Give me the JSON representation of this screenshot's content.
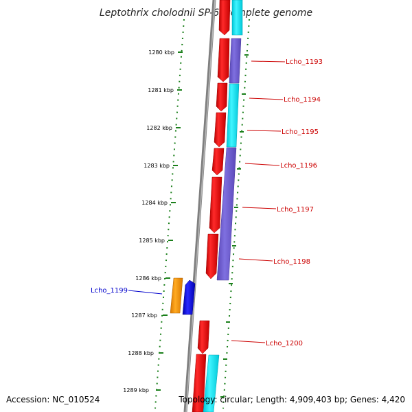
{
  "title": "Leptothrix cholodnii SP-6, complete genome",
  "footer": {
    "accession": "Accession: NC_010524",
    "topology": "Topology: circular; Length: 4,909,403 bp; Genes: 4,420"
  },
  "ticks": [
    {
      "label": "1280 kbp"
    },
    {
      "label": "1281 kbp"
    },
    {
      "label": "1282 kbp"
    },
    {
      "label": "1283 kbp"
    },
    {
      "label": "1284 kbp"
    },
    {
      "label": "1285 kbp"
    },
    {
      "label": "1286 kbp"
    },
    {
      "label": "1287 kbp"
    },
    {
      "label": "1288 kbp"
    },
    {
      "label": "1289 kbp"
    }
  ],
  "gene_labels": [
    {
      "text": "Lcho_1193",
      "color": "#cc0000"
    },
    {
      "text": "Lcho_1194",
      "color": "#cc0000"
    },
    {
      "text": "Lcho_1195",
      "color": "#cc0000"
    },
    {
      "text": "Lcho_1196",
      "color": "#cc0000"
    },
    {
      "text": "Lcho_1197",
      "color": "#cc0000"
    },
    {
      "text": "Lcho_1198",
      "color": "#cc0000"
    },
    {
      "text": "Lcho_1200",
      "color": "#cc0000"
    },
    {
      "text": "Lcho_1199",
      "color": "#0000cc"
    }
  ],
  "colors": {
    "backbone": "#7f7f7f",
    "tick_marks": "#1a7f1a",
    "cds": "#ee0000",
    "cyan_feature": "#00e5f0",
    "purple_feature": "#6a5acd",
    "orange_feature": "#ff9900",
    "blue_feature": "#0000ee"
  }
}
